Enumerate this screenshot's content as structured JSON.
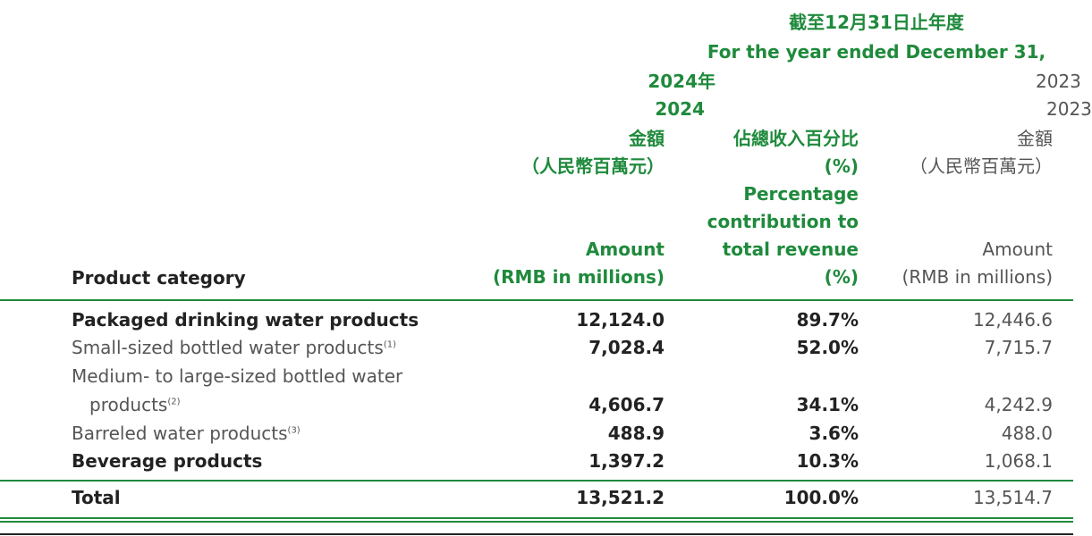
{
  "header": {
    "period_zh": "截至12月31日止年度",
    "period_en": "For the year ended December 31,",
    "year_2024_zh": "2024年",
    "year_2024_en": "2024",
    "year_2023_zh": "2023",
    "year_2023_en": "2023",
    "amount_zh": "金額",
    "amount_unit_zh": "（人民幣百萬元）",
    "pct_zh": "佔總收入百分比",
    "pct_sym": "(%)",
    "pct_en_1": "Percentage",
    "pct_en_2": "contribution to",
    "pct_en_3": "total revenue",
    "pct_en_4": "(%)",
    "amount_en": "Amount",
    "amount_unit_en": "(RMB in millions)",
    "amount_zh_2023": "金額",
    "amount_unit_zh_2023": "（人民幣百萬元）",
    "amount_en_2023": "Amount",
    "amount_unit_en_2023": "(RMB in millions)",
    "product_category": "Product category"
  },
  "rows": [
    {
      "label": "Packaged drinking water products",
      "amount_2024": "12,124.0",
      "pct_2024": "89.7%",
      "amount_2023": "12,446.6"
    },
    {
      "label": "Small-sized bottled water products",
      "note": "(1)",
      "amount_2024": "7,028.4",
      "pct_2024": "52.0%",
      "amount_2023": "7,715.7"
    },
    {
      "label_line1": "Medium- to large-sized bottled water",
      "label_line2": "products",
      "note": "(2)",
      "amount_2024": "4,606.7",
      "pct_2024": "34.1%",
      "amount_2023": "4,242.9"
    },
    {
      "label": "Barreled water products",
      "note": "(3)",
      "amount_2024": "488.9",
      "pct_2024": "3.6%",
      "amount_2023": "488.0"
    },
    {
      "label": "Beverage products",
      "amount_2024": "1,397.2",
      "pct_2024": "10.3%",
      "amount_2023": "1,068.1"
    }
  ],
  "total": {
    "label": "Total",
    "amount_2024": "13,521.2",
    "pct_2024": "100.0%",
    "amount_2023": "13,514.7"
  },
  "colors": {
    "accent": "#1f8a3c",
    "text": "#222222"
  }
}
